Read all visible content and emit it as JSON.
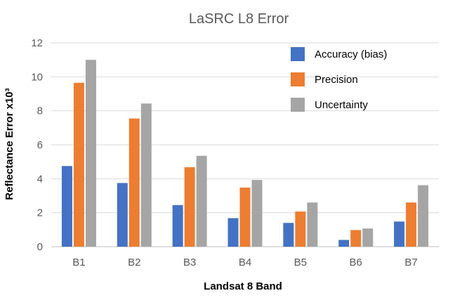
{
  "chart_data": {
    "type": "bar",
    "title": "LaSRC L8 Error",
    "xlabel": "Landsat 8 Band",
    "ylabel": "Reflectance Error  x10³",
    "categories": [
      "B1",
      "B2",
      "B3",
      "B4",
      "B5",
      "B6",
      "B7"
    ],
    "ylim": [
      0,
      12
    ],
    "yticks": [
      "0",
      "2",
      "4",
      "6",
      "8",
      "10",
      "12"
    ],
    "grid": true,
    "legend_position": "top-right",
    "series": [
      {
        "name": "Accuracy (bias)",
        "color": "#4472c4",
        "values": [
          4.75,
          3.75,
          2.45,
          1.68,
          1.4,
          0.4,
          1.48
        ]
      },
      {
        "name": "Precision",
        "color": "#ed7d31",
        "values": [
          9.65,
          7.55,
          4.68,
          3.48,
          2.07,
          0.98,
          2.6
        ]
      },
      {
        "name": "Uncertainty",
        "color": "#a5a5a5",
        "values": [
          11.0,
          8.43,
          5.35,
          3.93,
          2.6,
          1.07,
          3.62
        ]
      }
    ]
  }
}
